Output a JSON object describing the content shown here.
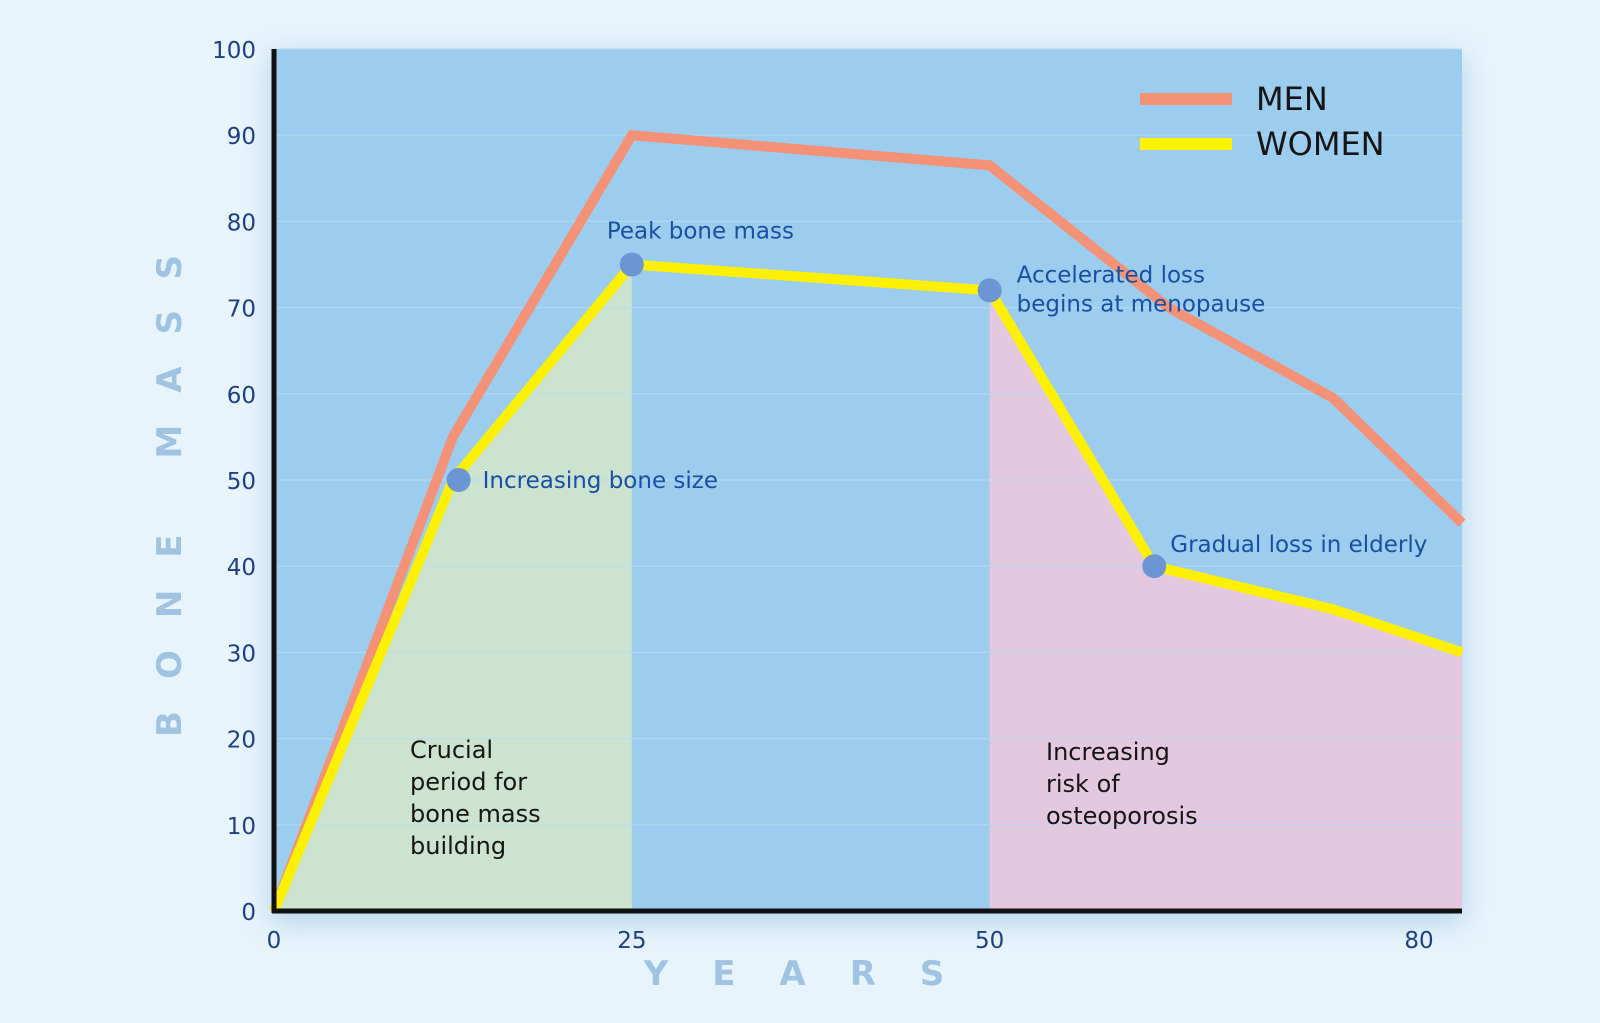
{
  "chart_data": {
    "type": "line",
    "title": "",
    "xlabel": "YEARS",
    "ylabel": "BONE MASS",
    "xlim": [
      0,
      83
    ],
    "ylim": [
      0,
      100
    ],
    "x_ticks": [
      0,
      25,
      50,
      80
    ],
    "y_ticks": [
      0,
      10,
      20,
      30,
      40,
      50,
      60,
      70,
      80,
      90,
      100
    ],
    "grid": "horizontal",
    "legend_position": "top-right",
    "series": [
      {
        "name": "MEN",
        "color": "#f39276",
        "points": [
          [
            0,
            0
          ],
          [
            12.5,
            55
          ],
          [
            25,
            90
          ],
          [
            50,
            86.5
          ],
          [
            62.5,
            70
          ],
          [
            74,
            59.5
          ],
          [
            83,
            45
          ]
        ]
      },
      {
        "name": "WOMEN",
        "color": "#fdf000",
        "points": [
          [
            0,
            0
          ],
          [
            12.5,
            50
          ],
          [
            25,
            75
          ],
          [
            50,
            72
          ],
          [
            61.5,
            40
          ],
          [
            74,
            35
          ],
          [
            83,
            30
          ]
        ]
      }
    ],
    "regions": [
      {
        "label": "Crucial period for bone mass building",
        "lines": [
          "Crucial",
          "period for",
          "bone mass",
          "building"
        ],
        "x_range": [
          0,
          25
        ],
        "color": "#cce4cf"
      },
      {
        "label": "Increasing risk of osteoporosis",
        "lines": [
          "Increasing",
          "risk of",
          "osteoporosis"
        ],
        "x_range": [
          50,
          83
        ],
        "color": "#e3c8df"
      }
    ],
    "annotations": [
      {
        "text": "Increasing bone size",
        "lines": [
          "Increasing bone size"
        ],
        "x": 12.9,
        "y": 50
      },
      {
        "text": "Peak bone mass",
        "lines": [
          "Peak bone mass"
        ],
        "x": 25,
        "y": 75
      },
      {
        "text": "Accelerated loss begins at menopause",
        "lines": [
          "Accelerated loss",
          "begins at menopause"
        ],
        "x": 50,
        "y": 72
      },
      {
        "text": "Gradual loss in elderly",
        "lines": [
          "Gradual loss in elderly"
        ],
        "x": 61.5,
        "y": 40
      }
    ],
    "plot_background": "#9ccdee",
    "marker_color": "#6b95d3"
  }
}
